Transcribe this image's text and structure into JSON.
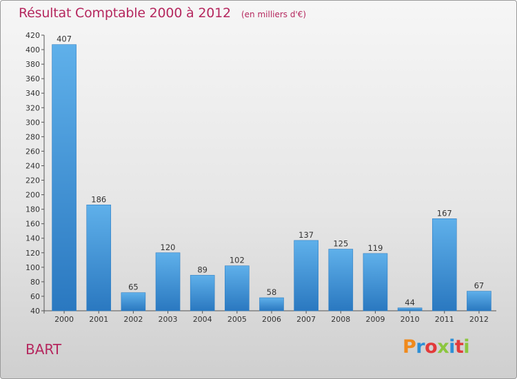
{
  "header": {
    "title": "Résultat Comptable 2000 à 2012",
    "subtitle": "(en milliers d'€)"
  },
  "footer": {
    "commune": "BART",
    "logo": "Proxiti"
  },
  "colors": {
    "title": "#b5275e",
    "bar_top": "#5fb0ea",
    "bar_bottom": "#2a78c0"
  },
  "chart_data": {
    "type": "bar",
    "title": "Résultat Comptable 2000 à 2012",
    "subtitle": "(en milliers d'€)",
    "categories": [
      "2000",
      "2001",
      "2002",
      "2003",
      "2004",
      "2005",
      "2006",
      "2007",
      "2008",
      "2009",
      "2010",
      "2011",
      "2012"
    ],
    "values": [
      407,
      186,
      65,
      120,
      89,
      102,
      58,
      137,
      125,
      119,
      44,
      167,
      67
    ],
    "ylim": [
      40,
      420
    ],
    "yticks": [
      40,
      60,
      80,
      100,
      120,
      140,
      160,
      180,
      200,
      220,
      240,
      260,
      280,
      300,
      320,
      340,
      360,
      380,
      400,
      420
    ],
    "grid": false,
    "legend": "none"
  }
}
